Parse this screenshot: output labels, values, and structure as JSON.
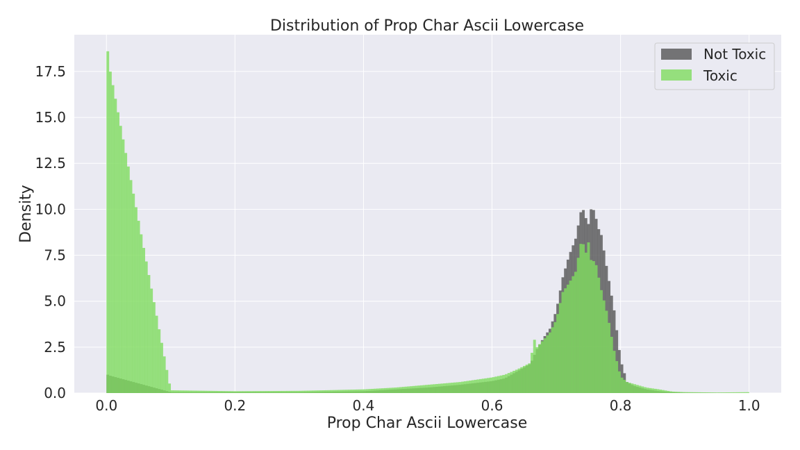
{
  "chart_data": {
    "type": "histogram",
    "title": "Distribution of Prop Char Ascii Lowercase",
    "xlabel": "Prop Char Ascii Lowercase",
    "ylabel": "Density",
    "xlim": [
      -0.05,
      1.05
    ],
    "ylim": [
      0,
      19.5
    ],
    "x_ticks": [
      0.0,
      0.2,
      0.4,
      0.6,
      0.8,
      1.0
    ],
    "x_tick_labels": [
      "0.0",
      "0.2",
      "0.4",
      "0.6",
      "0.8",
      "1.0"
    ],
    "y_ticks": [
      0.0,
      2.5,
      5.0,
      7.5,
      10.0,
      12.5,
      15.0,
      17.5
    ],
    "y_tick_labels": [
      "0.0",
      "2.5",
      "5.0",
      "7.5",
      "10.0",
      "12.5",
      "15.0",
      "17.5"
    ],
    "grid": true,
    "legend_position": "top-right",
    "bin_range": [
      0.0,
      1.0
    ],
    "bin_count": 250,
    "series": [
      {
        "name": "Not Toxic",
        "color": "#555555",
        "opacity": 0.8,
        "x": [
          0.0,
          0.1,
          0.2,
          0.3,
          0.4,
          0.45,
          0.5,
          0.55,
          0.6,
          0.62,
          0.64,
          0.66,
          0.67,
          0.68,
          0.69,
          0.7,
          0.71,
          0.72,
          0.73,
          0.74,
          0.745,
          0.75,
          0.755,
          0.76,
          0.765,
          0.77,
          0.78,
          0.79,
          0.8,
          0.81,
          0.82,
          0.84,
          0.86,
          0.88,
          0.9,
          0.95,
          1.0
        ],
        "y": [
          1.0,
          0.05,
          0.05,
          0.05,
          0.1,
          0.2,
          0.3,
          0.45,
          0.65,
          0.8,
          1.2,
          1.6,
          2.4,
          3.0,
          3.5,
          4.5,
          6.3,
          7.5,
          8.4,
          10.2,
          9.6,
          9.2,
          10.2,
          9.8,
          9.0,
          8.6,
          6.5,
          4.5,
          1.8,
          0.6,
          0.4,
          0.2,
          0.1,
          0.05,
          0.02,
          0.01,
          0.0
        ]
      },
      {
        "name": "Toxic",
        "color": "#7fdc5f",
        "opacity": 0.8,
        "x": [
          0.0,
          0.1,
          0.2,
          0.3,
          0.4,
          0.45,
          0.5,
          0.55,
          0.6,
          0.62,
          0.64,
          0.66,
          0.665,
          0.67,
          0.68,
          0.69,
          0.7,
          0.71,
          0.72,
          0.73,
          0.74,
          0.745,
          0.75,
          0.755,
          0.76,
          0.77,
          0.78,
          0.79,
          0.8,
          0.81,
          0.82,
          0.84,
          0.86,
          0.88,
          0.9,
          0.95,
          1.0
        ],
        "y": [
          18.6,
          0.15,
          0.1,
          0.12,
          0.2,
          0.3,
          0.45,
          0.6,
          0.85,
          1.0,
          1.3,
          1.65,
          3.0,
          2.5,
          2.9,
          3.3,
          4.0,
          5.5,
          6.0,
          6.6,
          8.5,
          7.5,
          8.2,
          7.0,
          7.3,
          5.6,
          4.2,
          2.3,
          0.9,
          0.6,
          0.5,
          0.3,
          0.2,
          0.08,
          0.05,
          0.03,
          0.05
        ]
      }
    ]
  }
}
